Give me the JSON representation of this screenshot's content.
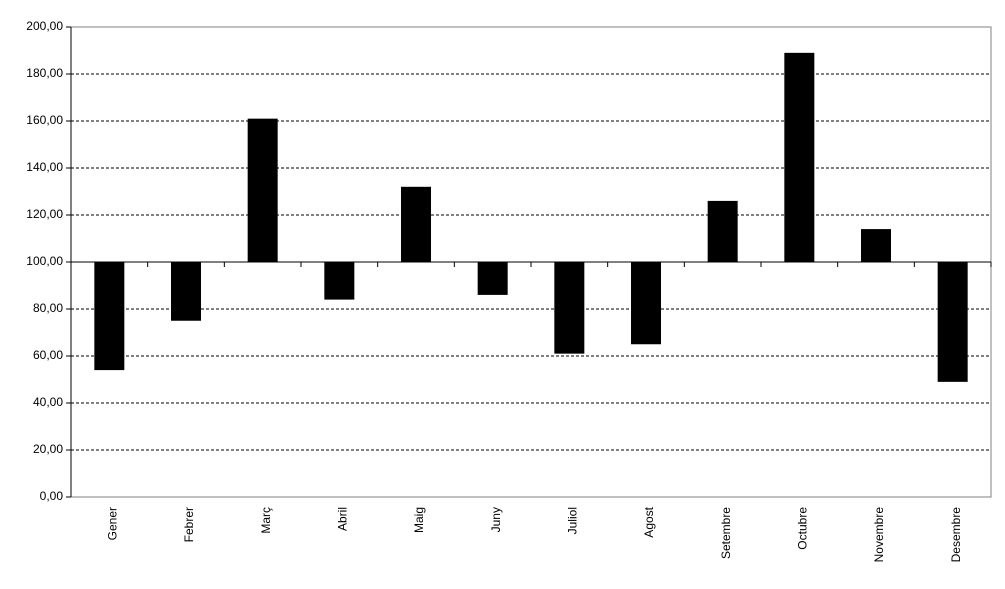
{
  "chart_data": {
    "type": "bar",
    "categories": [
      "Gener",
      "Febrer",
      "Març",
      "Abril",
      "Maig",
      "Juny",
      "Juliol",
      "Agost",
      "Setembre",
      "Octubre",
      "Novembre",
      "Desembre"
    ],
    "values": [
      54,
      75,
      161,
      84,
      132,
      86,
      61,
      65,
      126,
      189,
      114,
      49
    ],
    "color": "#000000",
    "baseline": 100,
    "ylim": [
      0,
      200
    ],
    "yticks": [
      {
        "value": 0,
        "label": "0,00"
      },
      {
        "value": 20,
        "label": "20,00"
      },
      {
        "value": 40,
        "label": "40,00"
      },
      {
        "value": 60,
        "label": "60,00"
      },
      {
        "value": 80,
        "label": "80,00"
      },
      {
        "value": 100,
        "label": "100,00"
      },
      {
        "value": 120,
        "label": "120,00"
      },
      {
        "value": 140,
        "label": "140,00"
      },
      {
        "value": 160,
        "label": "160,00"
      },
      {
        "value": 180,
        "label": "180,00"
      },
      {
        "value": 200,
        "label": "200,00"
      }
    ],
    "grid": true
  }
}
